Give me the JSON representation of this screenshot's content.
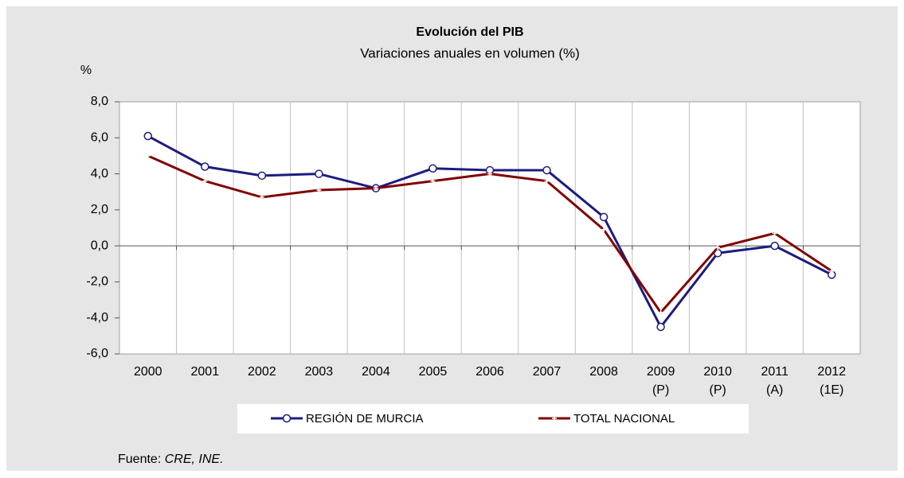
{
  "chart_data": {
    "type": "line",
    "title": "Evolución del PIB",
    "subtitle": "Variaciones anuales en volumen (%)",
    "y_label": "%",
    "categories": [
      "2000",
      "2001",
      "2002",
      "2003",
      "2004",
      "2005",
      "2006",
      "2007",
      "2008",
      "2009 (P)",
      "2010 (P)",
      "2011 (A)",
      "2012 (1E)"
    ],
    "series": [
      {
        "name": "REGIÓN DE MURCIA",
        "color": "#1c1c80",
        "values": [
          6.1,
          4.4,
          3.9,
          4.0,
          3.2,
          4.3,
          4.2,
          4.2,
          1.6,
          -4.5,
          -0.4,
          0.0,
          -1.6
        ]
      },
      {
        "name": "TOTAL NACIONAL",
        "color": "#800000",
        "values": [
          5.0,
          3.6,
          2.7,
          3.1,
          3.2,
          3.6,
          4.0,
          3.6,
          0.9,
          -3.7,
          -0.1,
          0.7,
          -1.4
        ]
      }
    ],
    "ylim": [
      -6,
      8
    ],
    "yticks": [
      {
        "value": -6,
        "label": "-6,0"
      },
      {
        "value": -4,
        "label": "-4,0"
      },
      {
        "value": -2,
        "label": "-2,0"
      },
      {
        "value": 0,
        "label": "0,0"
      },
      {
        "value": 2,
        "label": "2,0"
      },
      {
        "value": 4,
        "label": "4,0"
      },
      {
        "value": 6,
        "label": "6,0"
      },
      {
        "value": 8,
        "label": "8,0"
      }
    ],
    "grid": true,
    "legend": "bottom",
    "source_label": "Fuente:",
    "source": "CRE, INE."
  }
}
